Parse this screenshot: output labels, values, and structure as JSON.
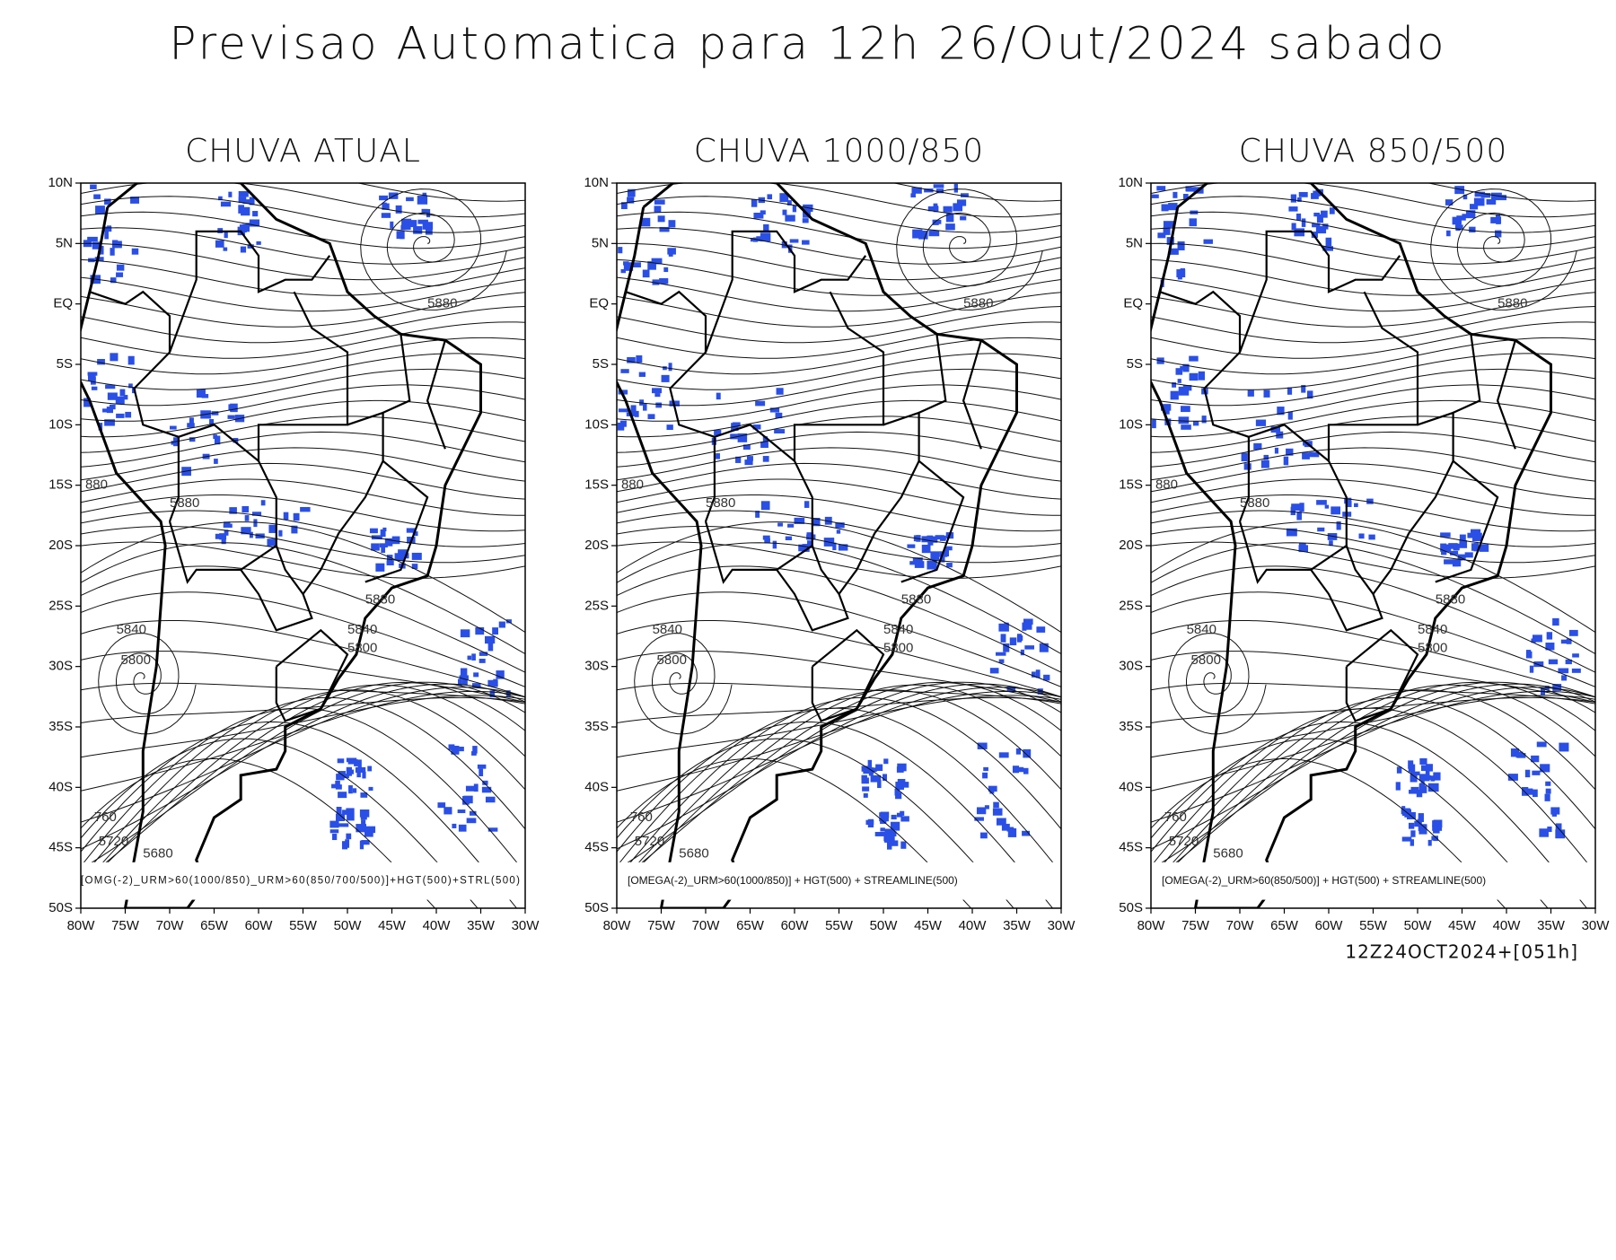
{
  "title": "Previsao Automatica para 12h 26/Out/2024 sabado",
  "panels": [
    {
      "title": "CHUVA ATUAL",
      "caption": "[OMG(-2)_URM>60(1000/850)_URM>60(850/700/500)]+HGT(500)+STRL(500)"
    },
    {
      "title": "CHUVA 1000/850",
      "caption": "[OMEGA(-2)_URM>60(1000/850)] + HGT(500) + STREAMLINE(500)"
    },
    {
      "title": "CHUVA 850/500",
      "caption": "[OMEGA(-2)_URM>60(850/500)] + HGT(500) + STREAMLINE(500)"
    }
  ],
  "lat_labels": [
    "10N",
    "5N",
    "EQ",
    "5S",
    "10S",
    "15S",
    "20S",
    "25S",
    "30S",
    "35S",
    "40S",
    "45S",
    "50S"
  ],
  "lon_labels": [
    "80W",
    "75W",
    "70W",
    "65W",
    "60W",
    "55W",
    "50W",
    "45W",
    "40W",
    "35W",
    "30W"
  ],
  "contour_labels": [
    "5880",
    "5880",
    "5880",
    "5840",
    "5800",
    "5840",
    "5800",
    "760",
    "5720",
    "5680",
    "880"
  ],
  "footer": "12Z24OCT2024+[051h]"
}
